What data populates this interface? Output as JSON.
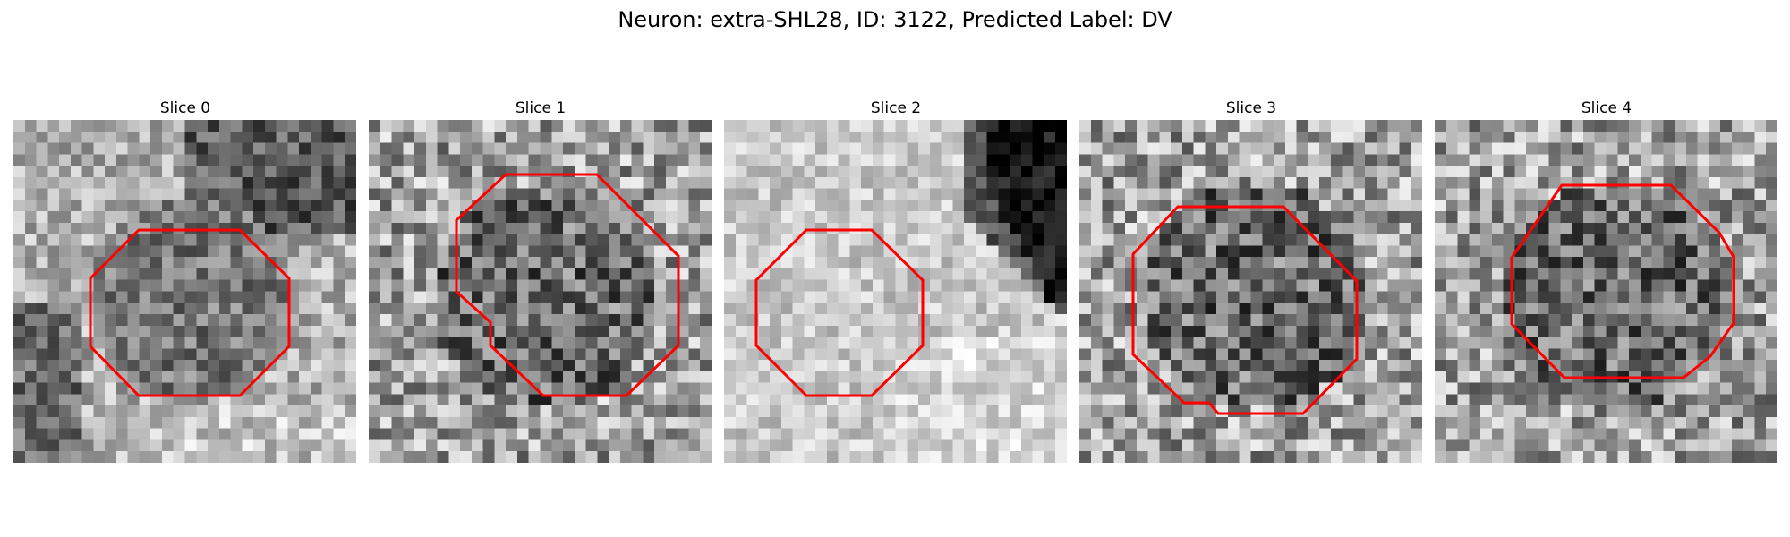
{
  "figure": {
    "title": "Neuron: extra-SHL28, ID: 3122, Predicted Label: DV"
  },
  "panels": [
    {
      "title": "Slice 0",
      "pattern": "dark-top-right-patch-bright-bottom"
    },
    {
      "title": "Slice 1",
      "pattern": "noisy-dark-center"
    },
    {
      "title": "Slice 2",
      "pattern": "bright-with-dark-top-right-corner"
    },
    {
      "title": "Slice 3",
      "pattern": "noisy-dark-center"
    },
    {
      "title": "Slice 4",
      "pattern": "noisy-dark-center"
    }
  ],
  "colors": {
    "contour": "#ff0000",
    "background": "#ffffff"
  }
}
